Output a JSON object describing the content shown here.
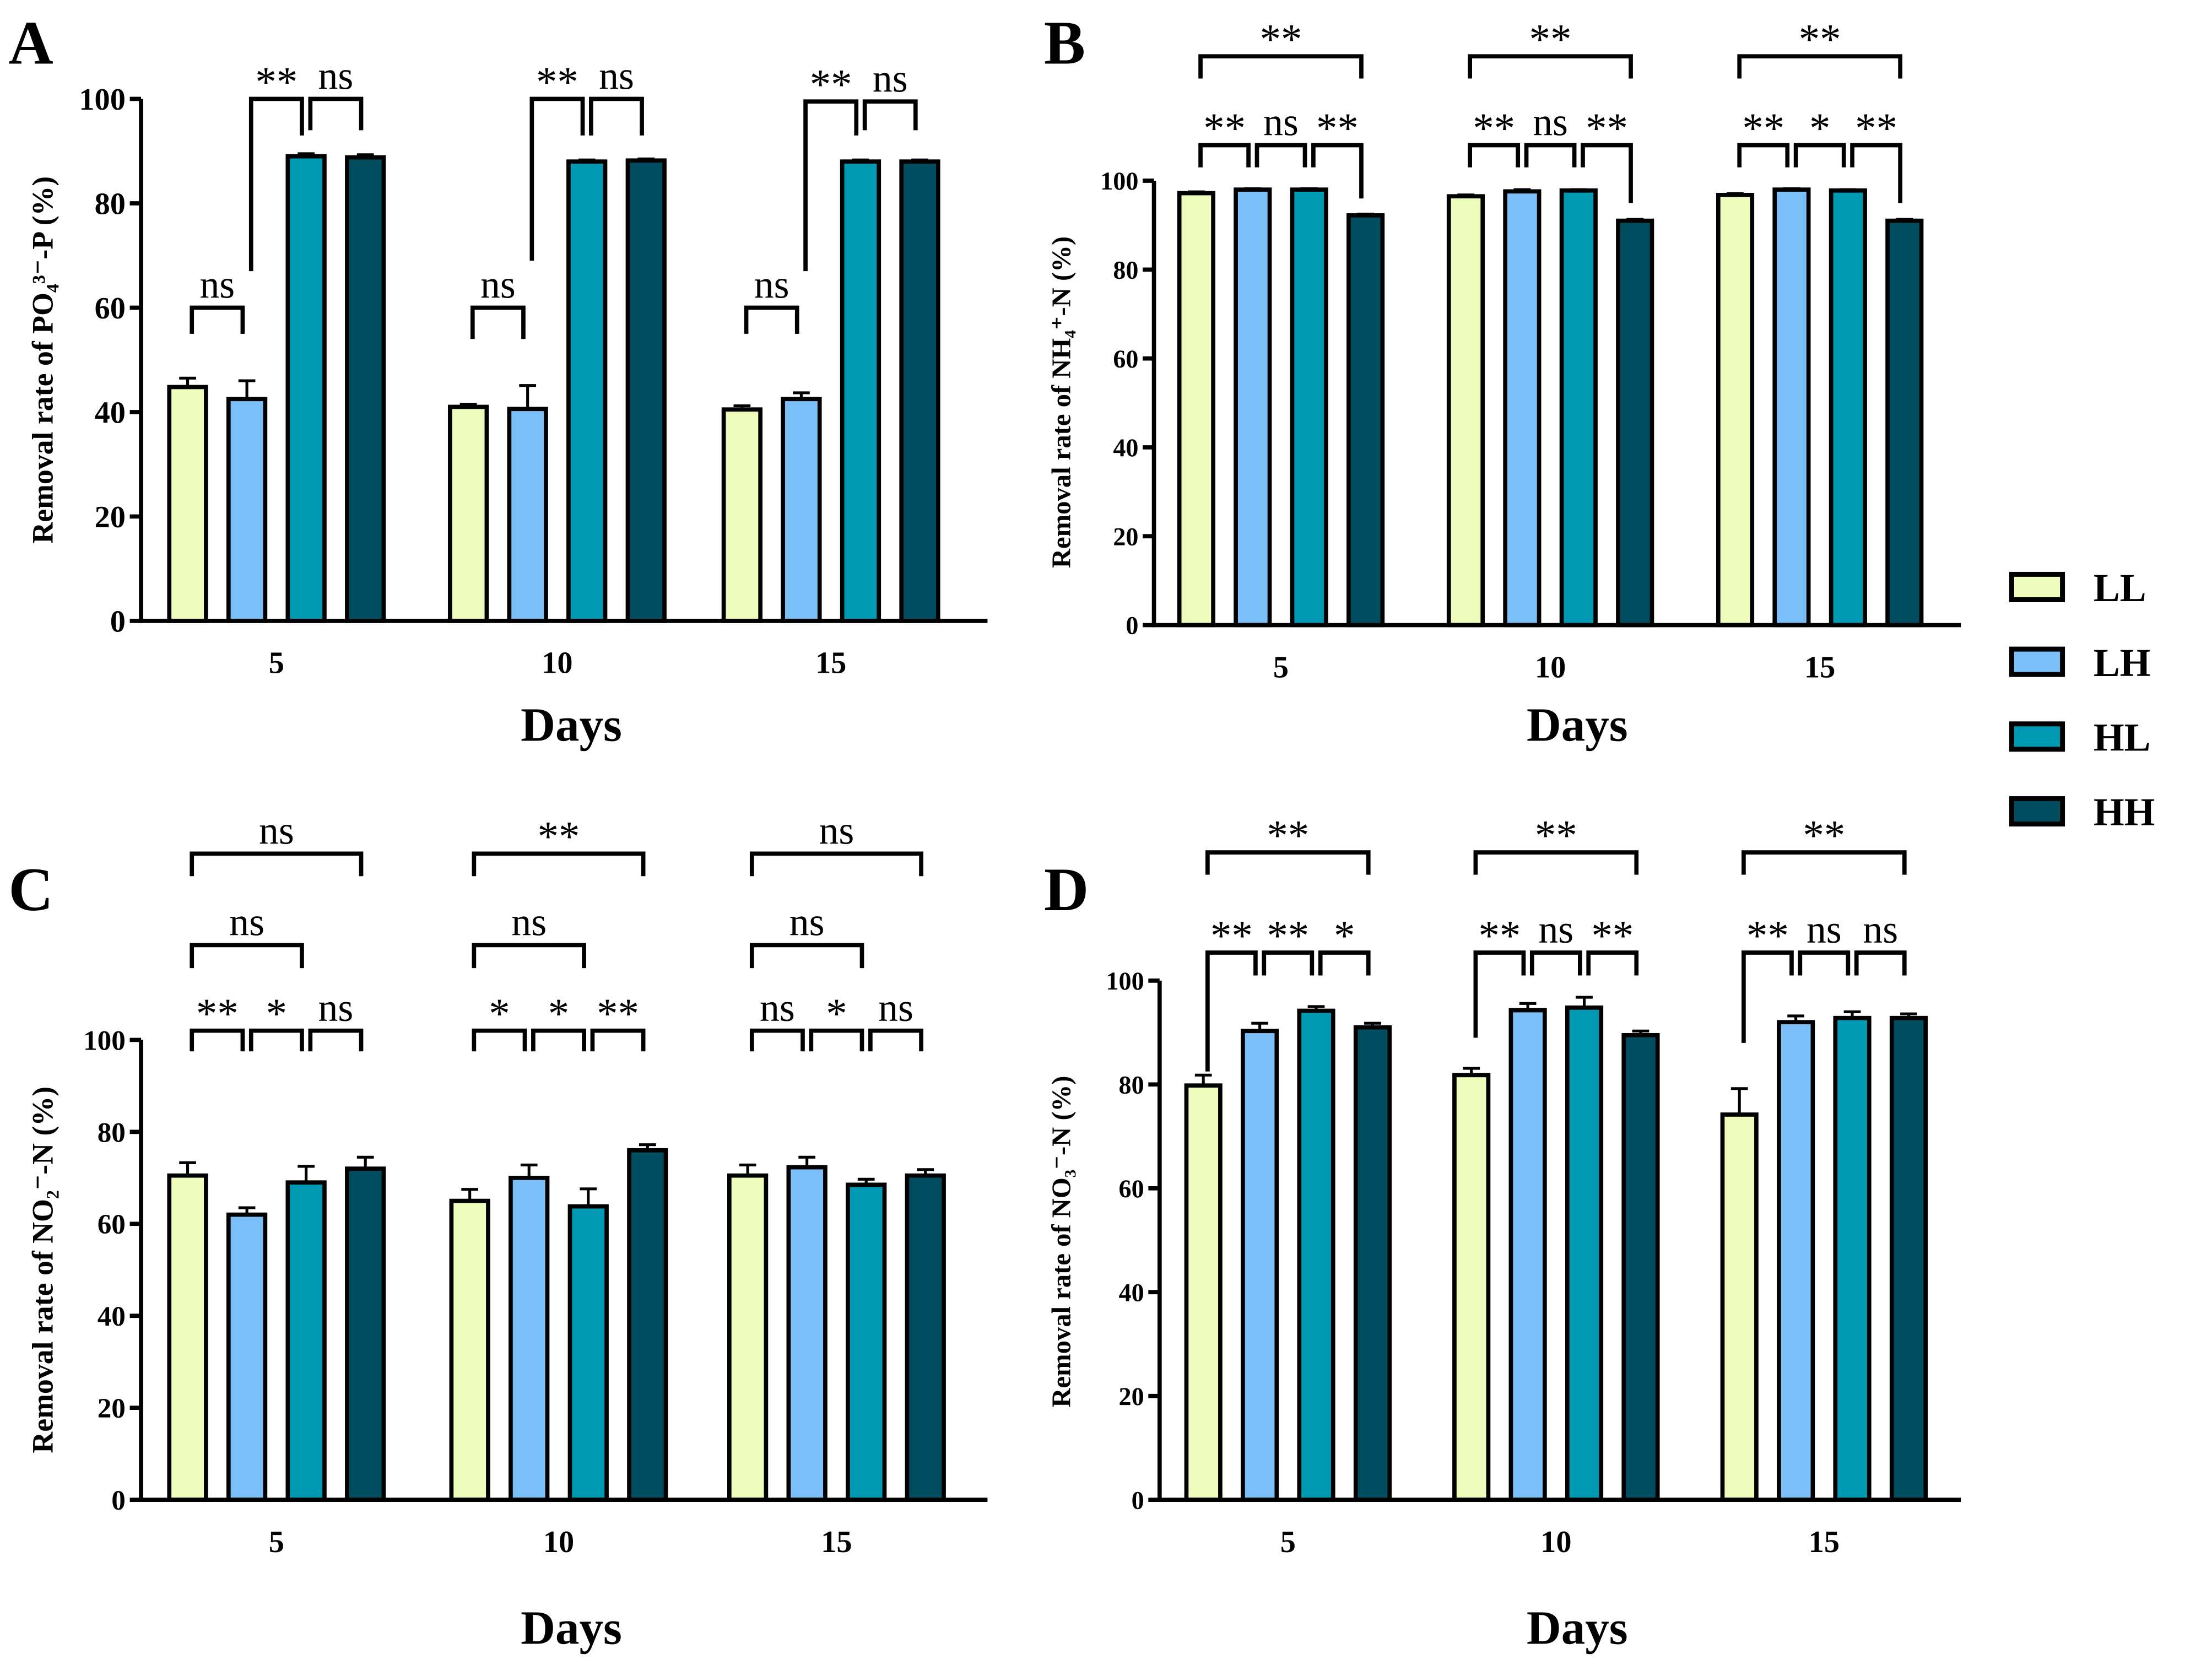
{
  "legend": {
    "entries": [
      {
        "name": "LL",
        "color": "#eefcbb"
      },
      {
        "name": "LH",
        "color": "#7abff7"
      },
      {
        "name": "HL",
        "color": "#0099b3"
      },
      {
        "name": "HH",
        "color": "#004d5f"
      }
    ]
  },
  "chart_data": [
    {
      "panel": "A",
      "type": "bar",
      "categories": [
        "5",
        "10",
        "15"
      ],
      "xlabel": "Days",
      "ylabel": "Removal rate of PO₄³⁻-P (%)",
      "ylim": [
        0,
        100
      ],
      "yticks": [
        "0",
        "20",
        "40",
        "60",
        "80",
        "100"
      ],
      "series": [
        {
          "name": "LL",
          "values": [
            44.8,
            41.0,
            40.5
          ],
          "errors": [
            1.7,
            0.5,
            0.7
          ]
        },
        {
          "name": "LH",
          "values": [
            42.5,
            40.6,
            42.5
          ],
          "errors": [
            3.5,
            4.5,
            1.2
          ]
        },
        {
          "name": "HL",
          "values": [
            89.0,
            88.0,
            88.0
          ],
          "errors": [
            0.5,
            0.3,
            0.3
          ]
        },
        {
          "name": "HH",
          "values": [
            88.8,
            88.2,
            88.0
          ],
          "errors": [
            0.5,
            0.3,
            0.3
          ]
        }
      ],
      "significance": [
        {
          "group": 0,
          "from": 0,
          "to": 1,
          "label": "ns",
          "y": 60,
          "legs": [
            55,
            55
          ]
        },
        {
          "group": 0,
          "from": 1,
          "to": 2,
          "label": "**",
          "y": 100,
          "legs": [
            67,
            93
          ]
        },
        {
          "group": 0,
          "from": 2,
          "to": 3,
          "label": "ns",
          "y": 100,
          "legs": [
            94,
            94
          ]
        },
        {
          "group": 1,
          "from": 0,
          "to": 1,
          "label": "ns",
          "y": 60,
          "legs": [
            54,
            54
          ]
        },
        {
          "group": 1,
          "from": 1,
          "to": 2,
          "label": "**",
          "y": 100,
          "legs": [
            69,
            93
          ]
        },
        {
          "group": 1,
          "from": 2,
          "to": 3,
          "label": "ns",
          "y": 100,
          "legs": [
            93,
            93
          ]
        },
        {
          "group": 2,
          "from": 0,
          "to": 1,
          "label": "ns",
          "y": 60,
          "legs": [
            55,
            55
          ]
        },
        {
          "group": 2,
          "from": 1,
          "to": 2,
          "label": "**",
          "y": 99.5,
          "legs": [
            67,
            93
          ]
        },
        {
          "group": 2,
          "from": 2,
          "to": 3,
          "label": "ns",
          "y": 99.5,
          "legs": [
            94,
            94
          ]
        }
      ]
    },
    {
      "panel": "B",
      "type": "bar",
      "categories": [
        "5",
        "10",
        "15"
      ],
      "xlabel": "Days",
      "ylabel": "Removal rate of NH₄⁺-N (%)",
      "ylim": [
        0,
        100
      ],
      "yticks": [
        "0",
        "20",
        "40",
        "60",
        "80",
        "100"
      ],
      "series": [
        {
          "name": "LL",
          "values": [
            97.2,
            96.5,
            96.8
          ],
          "errors": [
            0.3,
            0.3,
            0.3
          ]
        },
        {
          "name": "LH",
          "values": [
            98.0,
            97.6,
            98.0
          ],
          "errors": [
            0.2,
            0.4,
            0.2
          ]
        },
        {
          "name": "HL",
          "values": [
            98.0,
            97.8,
            97.8
          ],
          "errors": [
            0.2,
            0.2,
            0.2
          ]
        },
        {
          "name": "HH",
          "values": [
            92.2,
            91.0,
            91.0
          ],
          "errors": [
            0.3,
            0.3,
            0.3
          ]
        }
      ],
      "significance": [
        {
          "group": 0,
          "from": 0,
          "to": 3,
          "label": "**",
          "y": 128,
          "legs": [
            123,
            123
          ]
        },
        {
          "group": 0,
          "from": 0,
          "to": 1,
          "label": "**",
          "y": 108,
          "legs": [
            103,
            103
          ]
        },
        {
          "group": 0,
          "from": 1,
          "to": 2,
          "label": "ns",
          "y": 108,
          "legs": [
            103,
            103
          ]
        },
        {
          "group": 0,
          "from": 2,
          "to": 3,
          "label": "**",
          "y": 108,
          "legs": [
            103,
            96
          ]
        },
        {
          "group": 1,
          "from": 0,
          "to": 3,
          "label": "**",
          "y": 128,
          "legs": [
            123,
            123
          ]
        },
        {
          "group": 1,
          "from": 0,
          "to": 1,
          "label": "**",
          "y": 108,
          "legs": [
            103,
            103
          ]
        },
        {
          "group": 1,
          "from": 1,
          "to": 2,
          "label": "ns",
          "y": 108,
          "legs": [
            103,
            103
          ]
        },
        {
          "group": 1,
          "from": 2,
          "to": 3,
          "label": "**",
          "y": 108,
          "legs": [
            103,
            95
          ]
        },
        {
          "group": 2,
          "from": 0,
          "to": 3,
          "label": "**",
          "y": 128,
          "legs": [
            123,
            123
          ]
        },
        {
          "group": 2,
          "from": 0,
          "to": 1,
          "label": "**",
          "y": 108,
          "legs": [
            103,
            103
          ]
        },
        {
          "group": 2,
          "from": 1,
          "to": 2,
          "label": "*",
          "y": 108,
          "legs": [
            103,
            103
          ]
        },
        {
          "group": 2,
          "from": 2,
          "to": 3,
          "label": "**",
          "y": 108,
          "legs": [
            103,
            95
          ]
        }
      ]
    },
    {
      "panel": "C",
      "type": "bar",
      "categories": [
        "5",
        "10",
        "15"
      ],
      "xlabel": "Days",
      "ylabel": "Removal rate of NO₂⁻-N (%)",
      "ylim": [
        0,
        100
      ],
      "yticks": [
        "0",
        "20",
        "40",
        "60",
        "80",
        "100"
      ],
      "series": [
        {
          "name": "LL",
          "values": [
            70.5,
            65.0,
            70.5
          ],
          "errors": [
            2.8,
            2.5,
            2.3
          ]
        },
        {
          "name": "LH",
          "values": [
            62.0,
            70.0,
            72.3
          ],
          "errors": [
            1.5,
            2.8,
            2.2
          ]
        },
        {
          "name": "HL",
          "values": [
            69.0,
            63.8,
            68.5
          ],
          "errors": [
            3.5,
            3.8,
            1.2
          ]
        },
        {
          "name": "HH",
          "values": [
            72.0,
            76.0,
            70.5
          ],
          "errors": [
            2.5,
            1.2,
            1.3
          ]
        }
      ],
      "significance": [
        {
          "group": 0,
          "from": 0,
          "to": 3,
          "label": "ns",
          "y": 140.5,
          "legs": [
            135.6,
            135.6
          ]
        },
        {
          "group": 0,
          "from": 0,
          "to": 2,
          "label": "ns",
          "y": 120.6,
          "legs": [
            115.6,
            115.6
          ]
        },
        {
          "group": 0,
          "from": 0,
          "to": 1,
          "label": "**",
          "y": 102,
          "legs": [
            97.5,
            97.5
          ]
        },
        {
          "group": 0,
          "from": 1,
          "to": 2,
          "label": "*",
          "y": 102,
          "legs": [
            97.5,
            97.5
          ]
        },
        {
          "group": 0,
          "from": 2,
          "to": 3,
          "label": "ns",
          "y": 102,
          "legs": [
            97.5,
            97.5
          ]
        },
        {
          "group": 1,
          "from": 0,
          "to": 3,
          "label": "**",
          "y": 140.5,
          "legs": [
            135.6,
            135.6
          ]
        },
        {
          "group": 1,
          "from": 0,
          "to": 2,
          "label": "ns",
          "y": 120.6,
          "legs": [
            115.6,
            115.6
          ]
        },
        {
          "group": 1,
          "from": 0,
          "to": 1,
          "label": "*",
          "y": 102,
          "legs": [
            97.5,
            97.5
          ]
        },
        {
          "group": 1,
          "from": 1,
          "to": 2,
          "label": "*",
          "y": 102,
          "legs": [
            97.5,
            97.5
          ]
        },
        {
          "group": 1,
          "from": 2,
          "to": 3,
          "label": "**",
          "y": 102,
          "legs": [
            97.5,
            97.5
          ]
        },
        {
          "group": 2,
          "from": 0,
          "to": 3,
          "label": "ns",
          "y": 140.5,
          "legs": [
            135.6,
            135.6
          ]
        },
        {
          "group": 2,
          "from": 0,
          "to": 2,
          "label": "ns",
          "y": 120.6,
          "legs": [
            115.6,
            115.6
          ]
        },
        {
          "group": 2,
          "from": 0,
          "to": 1,
          "label": "ns",
          "y": 102,
          "legs": [
            97.5,
            97.5
          ]
        },
        {
          "group": 2,
          "from": 1,
          "to": 2,
          "label": "*",
          "y": 102,
          "legs": [
            97.5,
            97.5
          ]
        },
        {
          "group": 2,
          "from": 2,
          "to": 3,
          "label": "ns",
          "y": 102,
          "legs": [
            97.5,
            97.5
          ]
        }
      ]
    },
    {
      "panel": "D",
      "type": "bar",
      "categories": [
        "5",
        "10",
        "15"
      ],
      "xlabel": "Days",
      "ylabel": "Removal rate of NO₃⁻-N (%)",
      "ylim": [
        0,
        100
      ],
      "yticks": [
        "0",
        "20",
        "40",
        "60",
        "80",
        "100"
      ],
      "series": [
        {
          "name": "LL",
          "values": [
            79.8,
            81.8,
            74.2
          ],
          "errors": [
            2.0,
            1.3,
            5.0
          ]
        },
        {
          "name": "LH",
          "values": [
            90.3,
            94.3,
            92.0
          ],
          "errors": [
            1.5,
            1.3,
            1.2
          ]
        },
        {
          "name": "HL",
          "values": [
            94.2,
            94.8,
            92.8
          ],
          "errors": [
            0.8,
            2.0,
            1.2
          ]
        },
        {
          "name": "HH",
          "values": [
            91.0,
            89.5,
            92.8
          ],
          "errors": [
            0.8,
            0.8,
            0.8
          ]
        }
      ],
      "significance": [
        {
          "group": 0,
          "from": 0,
          "to": 3,
          "label": "**",
          "y": 124.7,
          "legs": [
            120.4,
            120.4
          ]
        },
        {
          "group": 0,
          "from": 0,
          "to": 1,
          "label": "**",
          "y": 105.4,
          "legs": [
            82.5,
            101
          ]
        },
        {
          "group": 0,
          "from": 1,
          "to": 2,
          "label": "**",
          "y": 105.4,
          "legs": [
            101,
            101
          ]
        },
        {
          "group": 0,
          "from": 2,
          "to": 3,
          "label": "*",
          "y": 105.4,
          "legs": [
            101,
            101
          ]
        },
        {
          "group": 1,
          "from": 0,
          "to": 3,
          "label": "**",
          "y": 124.7,
          "legs": [
            120.4,
            120.4
          ]
        },
        {
          "group": 1,
          "from": 0,
          "to": 1,
          "label": "**",
          "y": 105.4,
          "legs": [
            89,
            101
          ]
        },
        {
          "group": 1,
          "from": 1,
          "to": 2,
          "label": "ns",
          "y": 105.4,
          "legs": [
            101,
            101
          ]
        },
        {
          "group": 1,
          "from": 2,
          "to": 3,
          "label": "**",
          "y": 105.4,
          "legs": [
            101,
            101
          ]
        },
        {
          "group": 2,
          "from": 0,
          "to": 3,
          "label": "**",
          "y": 124.7,
          "legs": [
            120.4,
            120.4
          ]
        },
        {
          "group": 2,
          "from": 0,
          "to": 1,
          "label": "**",
          "y": 105.4,
          "legs": [
            88,
            101
          ]
        },
        {
          "group": 2,
          "from": 1,
          "to": 2,
          "label": "ns",
          "y": 105.4,
          "legs": [
            101,
            101
          ]
        },
        {
          "group": 2,
          "from": 2,
          "to": 3,
          "label": "ns",
          "y": 105.4,
          "legs": [
            101,
            101
          ]
        }
      ]
    }
  ]
}
